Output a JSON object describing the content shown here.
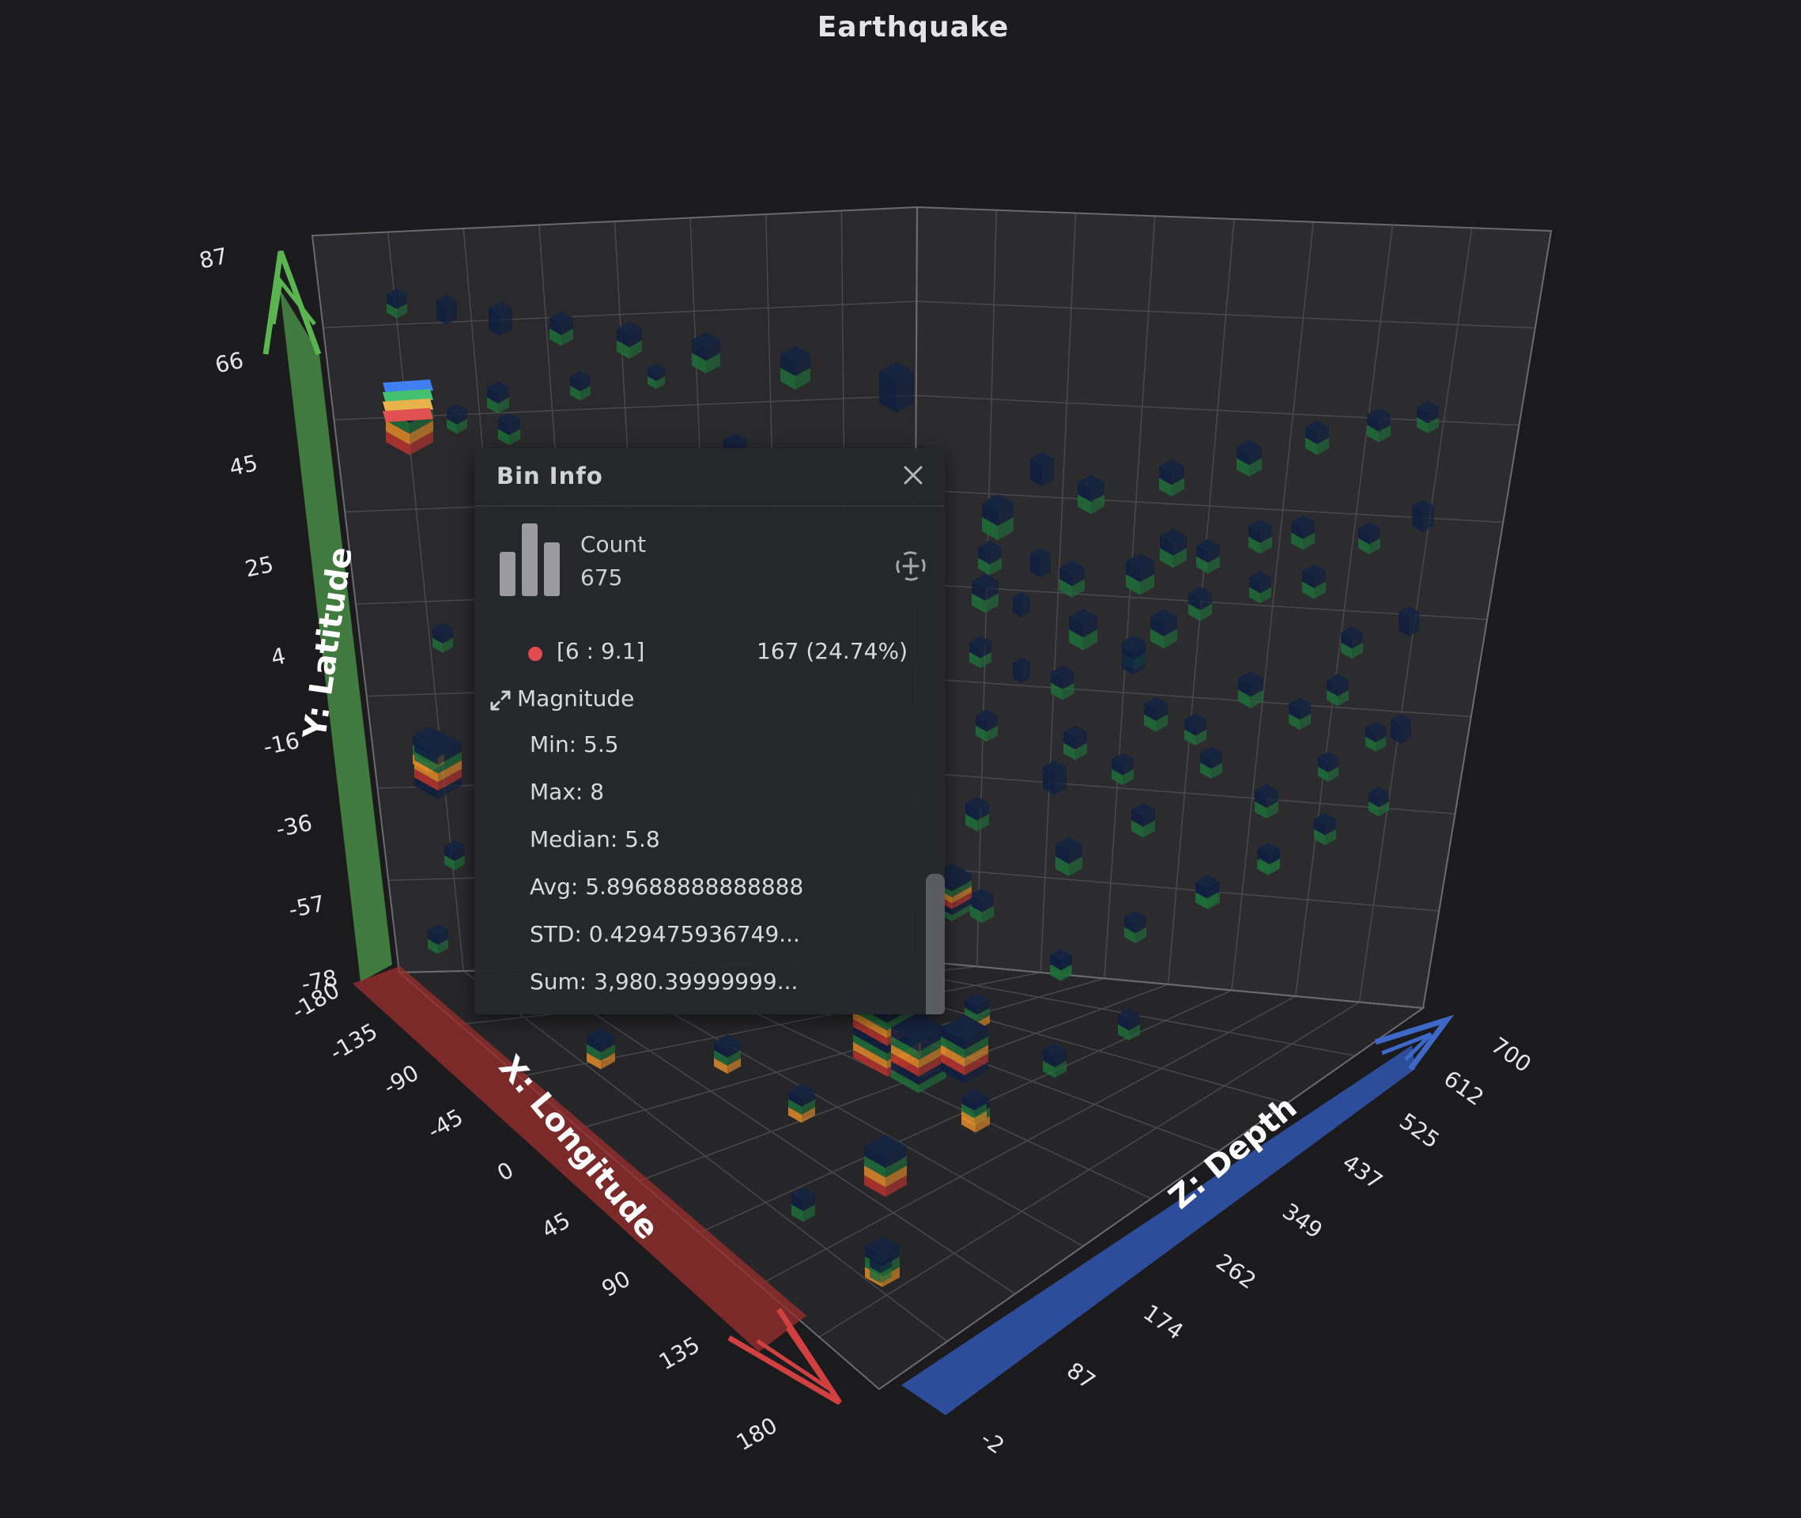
{
  "chart_data": {
    "type": "3d-bar",
    "title": "Earthquake",
    "x_axis": {
      "label": "X: Longitude",
      "ticks": [
        "-180",
        "-135",
        "-90",
        "-45",
        "0",
        "45",
        "90",
        "135",
        "180"
      ],
      "range": [
        -180,
        180
      ],
      "color": "#c0403c"
    },
    "y_axis": {
      "label": "Y: Latitude",
      "ticks": [
        "-78",
        "-57",
        "-36",
        "-16",
        "4",
        "25",
        "45",
        "66",
        "87"
      ],
      "range": [
        -78,
        87
      ],
      "color": "#55a84e"
    },
    "z_axis": {
      "label": "Z: Depth",
      "ticks": [
        "-2",
        "87",
        "174",
        "262",
        "349",
        "437",
        "525",
        "612",
        "700"
      ],
      "range": [
        -2,
        700
      ],
      "color": "#3d68c8"
    },
    "series_colors": [
      "#0f1f3f",
      "#1f6d38",
      "#e08a28",
      "#b8322e"
    ],
    "grid": true,
    "bins": [
      {
        "x": 0,
        "y": 0,
        "z": 0,
        "value": 675
      }
    ]
  },
  "tooltip": {
    "title": "Bin Info",
    "count_label": "Count",
    "count_value": "675",
    "range_label": "[6 : 9.1]",
    "range_color": "#e04a50",
    "range_count": "167 (24.74%)",
    "field_name": "Magnitude",
    "stats": {
      "min": "Min: 5.5",
      "max": "Max: 8",
      "median": "Median: 5.8",
      "avg": "Avg: 5.89688888888888",
      "std": "STD: 0.429475936749...",
      "sum": "Sum: 3,980.39999999..."
    },
    "close_icon": "close-icon",
    "focus_icon": "crosshair-icon"
  }
}
